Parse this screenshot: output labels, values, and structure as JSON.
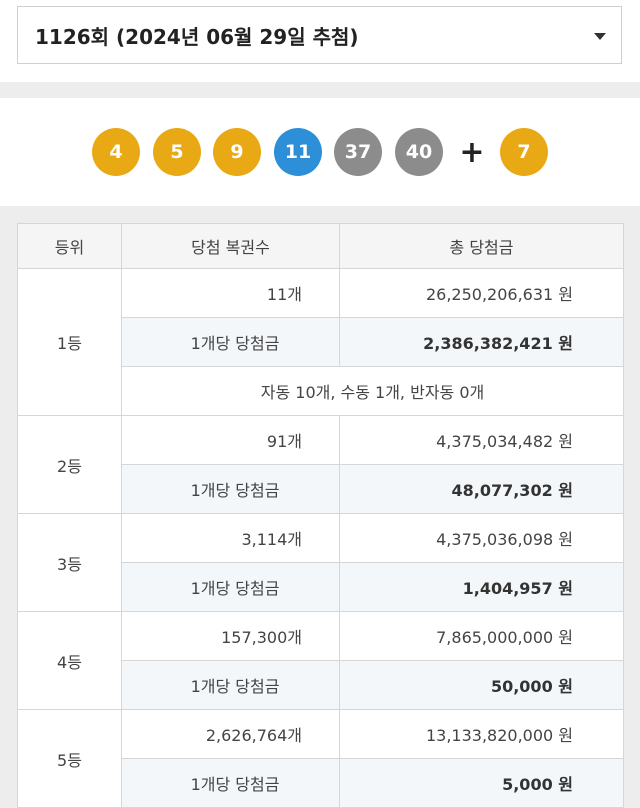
{
  "draw_select": {
    "value": "1126회 (2024년 06월 29일 추첨)",
    "icon": "caret-down-icon"
  },
  "winning_numbers": [
    {
      "number": "4",
      "color": "#e8a914"
    },
    {
      "number": "5",
      "color": "#e8a914"
    },
    {
      "number": "9",
      "color": "#e8a914"
    },
    {
      "number": "11",
      "color": "#2c8fd8"
    },
    {
      "number": "37",
      "color": "#8c8c8c"
    },
    {
      "number": "40",
      "color": "#8c8c8c"
    }
  ],
  "plus_symbol": "+",
  "bonus_number": {
    "number": "7",
    "color": "#e8a914"
  },
  "table": {
    "headers": [
      "등위",
      "당첨 복권수",
      "총 당첨금"
    ],
    "rows": [
      {
        "rank": "1등",
        "count": "11개",
        "total": "26,250,206,631 원",
        "per_label": "1개당 당첨금",
        "per_amount": "2,386,382,421 원",
        "note": "자동 10개, 수동 1개, 반자동 0개"
      },
      {
        "rank": "2등",
        "count": "91개",
        "total": "4,375,034,482 원",
        "per_label": "1개당 당첨금",
        "per_amount": "48,077,302 원"
      },
      {
        "rank": "3등",
        "count": "3,114개",
        "total": "4,375,036,098 원",
        "per_label": "1개당 당첨금",
        "per_amount": "1,404,957 원"
      },
      {
        "rank": "4등",
        "count": "157,300개",
        "total": "7,865,000,000 원",
        "per_label": "1개당 당첨금",
        "per_amount": "50,000 원"
      },
      {
        "rank": "5등",
        "count": "2,626,764개",
        "total": "13,133,820,000 원",
        "per_label": "1개당 당첨금",
        "per_amount": "5,000 원"
      }
    ]
  }
}
